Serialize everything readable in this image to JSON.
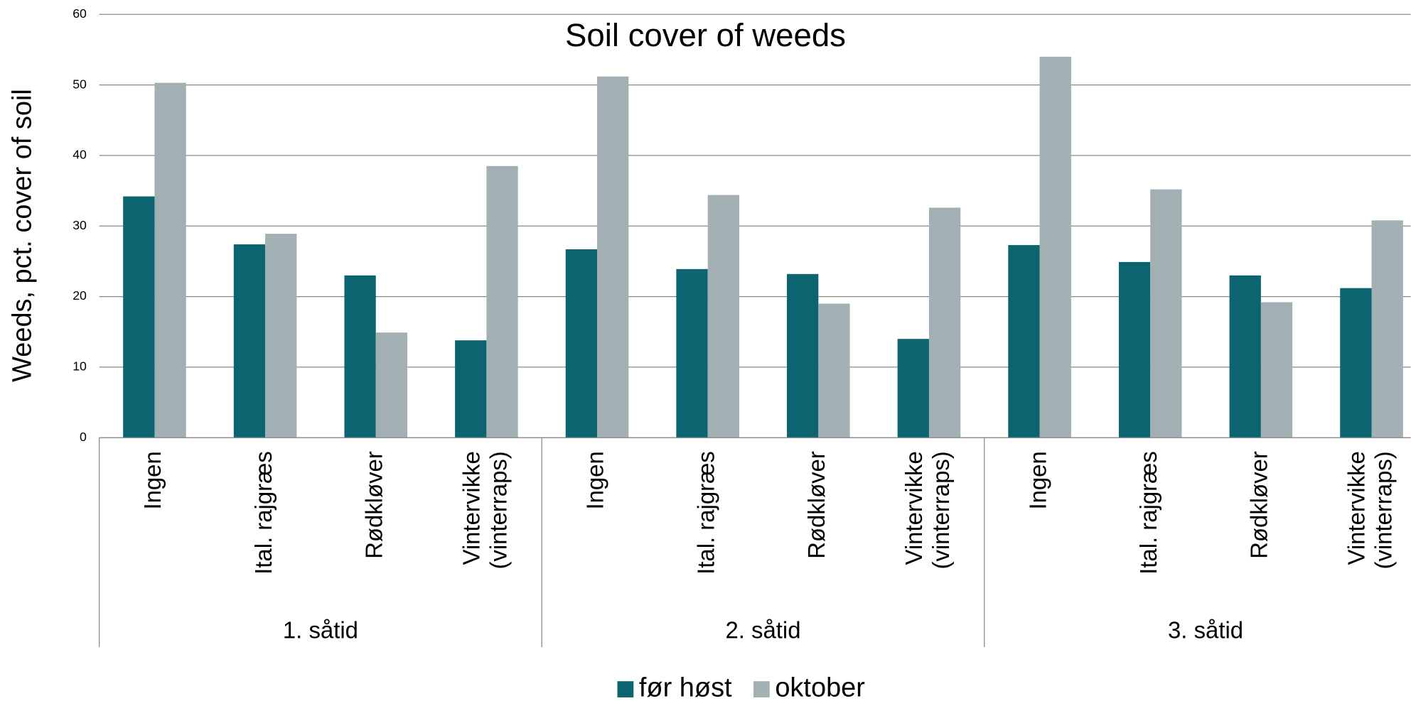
{
  "chart_data": {
    "type": "bar",
    "title": "Soil cover of weeds",
    "y_label": "Weeds, pct. cover of soil",
    "categories": [
      "Ingen",
      "Ital. rajgræs",
      "Rødkløver",
      "Vintervikke (vinterraps)",
      "Ingen",
      "Ital. rajgræs",
      "Rødkløver",
      "Vintervikke (vinterraps)",
      "Ingen",
      "Ital. rajgræs",
      "Rødkløver",
      "Vintervikke (vinterraps)"
    ],
    "groups": [
      "1. såtid",
      "2. såtid",
      "3. såtid"
    ],
    "series": [
      {
        "name": "før høst",
        "color": "#0b6470",
        "values": [
          34.2,
          27.4,
          23.0,
          13.8,
          26.7,
          23.9,
          23.2,
          14.0,
          27.3,
          24.9,
          23.0,
          21.2
        ]
      },
      {
        "name": "oktober",
        "color": "#a2afb3",
        "values": [
          50.3,
          28.9,
          14.9,
          38.5,
          51.2,
          34.4,
          19.0,
          32.6,
          54.0,
          35.2,
          19.2,
          30.8
        ]
      }
    ],
    "ylim": [
      0,
      60
    ],
    "yticks": [
      0,
      10,
      20,
      30,
      40,
      50,
      60
    ],
    "grid": true,
    "legend": "bottom"
  }
}
